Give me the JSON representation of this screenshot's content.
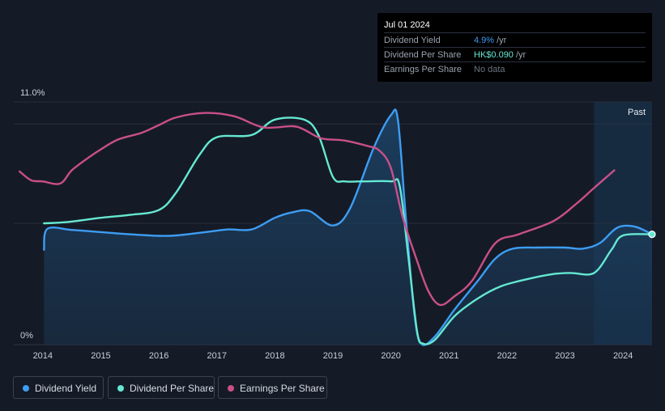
{
  "tooltip": {
    "date": "Jul 01 2024",
    "rows": [
      {
        "label": "Dividend Yield",
        "value": "4.9%",
        "unit": "/yr",
        "color": "#3d9df3"
      },
      {
        "label": "Dividend Per Share",
        "value": "HK$0.090",
        "unit": "/yr",
        "color": "#65e8d2"
      },
      {
        "label": "Earnings Per Share",
        "value": "No data",
        "unit": "",
        "color": "#6b7380"
      }
    ]
  },
  "legend": [
    {
      "label": "Dividend Yield",
      "color": "#3d9df3"
    },
    {
      "label": "Dividend Per Share",
      "color": "#65e8d2"
    },
    {
      "label": "Earnings Per Share",
      "color": "#c94f8a"
    }
  ],
  "chart_data": {
    "type": "line",
    "y_axis_labels": {
      "top": "11.0%",
      "bottom": "0%"
    },
    "ylim": [
      0,
      11
    ],
    "xlim": [
      2013.5,
      2024.5
    ],
    "x_ticks": [
      "2014",
      "2015",
      "2016",
      "2017",
      "2018",
      "2019",
      "2020",
      "2021",
      "2022",
      "2023",
      "2024"
    ],
    "past_label": "Past",
    "past_start": 2023.5,
    "grid": true,
    "series": [
      {
        "name": "Dividend Yield",
        "color": "#3d9df3",
        "fill": true,
        "points": [
          [
            2014.02,
            4.3
          ],
          [
            2014.08,
            5.25
          ],
          [
            2014.5,
            5.2
          ],
          [
            2015.0,
            5.1
          ],
          [
            2015.5,
            5.0
          ],
          [
            2016.0,
            4.93
          ],
          [
            2016.3,
            4.95
          ],
          [
            2016.8,
            5.1
          ],
          [
            2017.2,
            5.22
          ],
          [
            2017.6,
            5.22
          ],
          [
            2018.0,
            5.75
          ],
          [
            2018.3,
            6.0
          ],
          [
            2018.6,
            6.05
          ],
          [
            2019.0,
            5.4
          ],
          [
            2019.3,
            6.2
          ],
          [
            2019.7,
            8.9
          ],
          [
            2020.0,
            10.4
          ],
          [
            2020.12,
            10.2
          ],
          [
            2020.25,
            6.0
          ],
          [
            2020.4,
            1.5
          ],
          [
            2020.52,
            0.05
          ],
          [
            2020.75,
            0.35
          ],
          [
            2021.1,
            1.6
          ],
          [
            2021.5,
            2.9
          ],
          [
            2021.8,
            3.9
          ],
          [
            2022.1,
            4.35
          ],
          [
            2022.5,
            4.4
          ],
          [
            2023.0,
            4.4
          ],
          [
            2023.3,
            4.35
          ],
          [
            2023.6,
            4.6
          ],
          [
            2023.9,
            5.3
          ],
          [
            2024.2,
            5.35
          ],
          [
            2024.5,
            5.0
          ]
        ]
      },
      {
        "name": "Dividend Per Share",
        "color": "#65e8d2",
        "fill": false,
        "points": [
          [
            2014.02,
            5.5
          ],
          [
            2014.4,
            5.55
          ],
          [
            2015.0,
            5.75
          ],
          [
            2015.5,
            5.88
          ],
          [
            2016.0,
            6.1
          ],
          [
            2016.3,
            6.9
          ],
          [
            2016.7,
            8.6
          ],
          [
            2017.0,
            9.4
          ],
          [
            2017.6,
            9.5
          ],
          [
            2018.0,
            10.2
          ],
          [
            2018.5,
            10.2
          ],
          [
            2018.75,
            9.5
          ],
          [
            2019.0,
            7.6
          ],
          [
            2019.2,
            7.4
          ],
          [
            2019.5,
            7.4
          ],
          [
            2020.0,
            7.4
          ],
          [
            2020.15,
            7.2
          ],
          [
            2020.3,
            4.0
          ],
          [
            2020.45,
            0.6
          ],
          [
            2020.55,
            0.05
          ],
          [
            2020.75,
            0.2
          ],
          [
            2021.1,
            1.3
          ],
          [
            2021.5,
            2.1
          ],
          [
            2021.9,
            2.65
          ],
          [
            2022.4,
            3.0
          ],
          [
            2022.8,
            3.2
          ],
          [
            2023.1,
            3.25
          ],
          [
            2023.5,
            3.25
          ],
          [
            2023.8,
            4.3
          ],
          [
            2024.0,
            4.95
          ],
          [
            2024.5,
            5.0
          ]
        ]
      },
      {
        "name": "Earnings Per Share",
        "color": "#c94f8a",
        "fill": false,
        "points": [
          [
            2013.6,
            7.85
          ],
          [
            2013.8,
            7.45
          ],
          [
            2014.0,
            7.4
          ],
          [
            2014.3,
            7.3
          ],
          [
            2014.5,
            7.9
          ],
          [
            2014.8,
            8.5
          ],
          [
            2015.0,
            8.85
          ],
          [
            2015.3,
            9.3
          ],
          [
            2015.7,
            9.6
          ],
          [
            2016.0,
            9.95
          ],
          [
            2016.3,
            10.3
          ],
          [
            2016.8,
            10.5
          ],
          [
            2017.3,
            10.35
          ],
          [
            2017.8,
            9.85
          ],
          [
            2018.3,
            9.9
          ],
          [
            2018.5,
            9.75
          ],
          [
            2018.8,
            9.35
          ],
          [
            2019.2,
            9.25
          ],
          [
            2019.6,
            9.0
          ],
          [
            2019.8,
            8.8
          ],
          [
            2020.0,
            8.0
          ],
          [
            2020.2,
            5.8
          ],
          [
            2020.45,
            3.8
          ],
          [
            2020.65,
            2.4
          ],
          [
            2020.85,
            1.8
          ],
          [
            2021.1,
            2.2
          ],
          [
            2021.4,
            2.9
          ],
          [
            2021.8,
            4.6
          ],
          [
            2022.2,
            5.0
          ],
          [
            2022.8,
            5.6
          ],
          [
            2023.2,
            6.4
          ],
          [
            2023.5,
            7.1
          ],
          [
            2023.85,
            7.9
          ]
        ]
      }
    ]
  }
}
